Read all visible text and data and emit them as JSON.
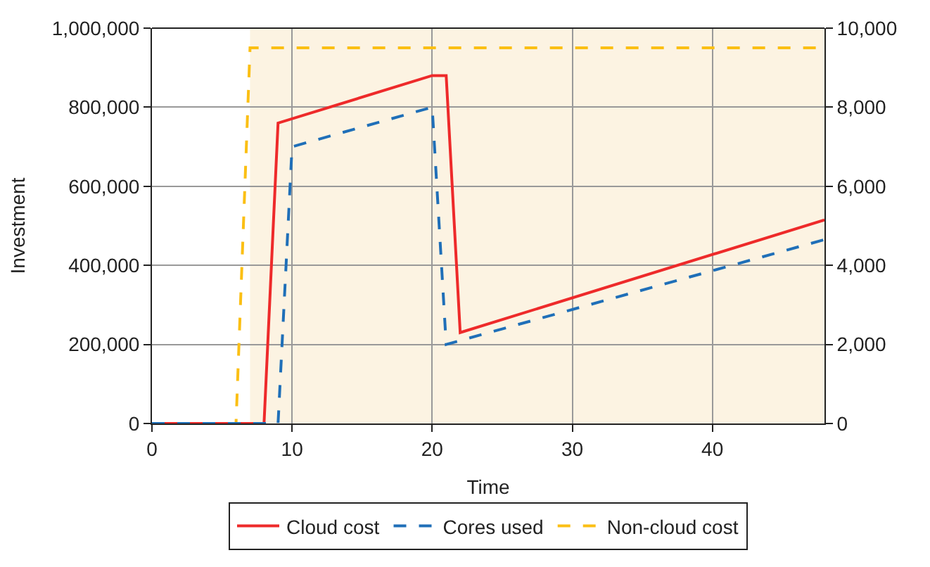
{
  "chart_data": {
    "type": "line",
    "xlabel": "Time",
    "ylabel": "Investment",
    "xlim": [
      0,
      48
    ],
    "xticks": [
      0,
      10,
      20,
      30,
      40
    ],
    "ylim": [
      0,
      1000000
    ],
    "yticks": [
      {
        "value": 0,
        "label": "0"
      },
      {
        "value": 200000,
        "label": "200,000"
      },
      {
        "value": 400000,
        "label": "400,000"
      },
      {
        "value": 600000,
        "label": "600,000"
      },
      {
        "value": 800000,
        "label": "800,000"
      },
      {
        "value": 1000000,
        "label": "1,000,000"
      }
    ],
    "y2lim": [
      0,
      10000
    ],
    "y2ticks": [
      {
        "value": 0,
        "label": "0"
      },
      {
        "value": 2000,
        "label": "2,000"
      },
      {
        "value": 4000,
        "label": "4,000"
      },
      {
        "value": 6000,
        "label": "6,000"
      },
      {
        "value": 8000,
        "label": "8,000"
      },
      {
        "value": 10000,
        "label": "10,000"
      }
    ],
    "grid": true,
    "legend": "bottom",
    "marker": "none",
    "bands": [
      {
        "axis": "x",
        "from": 7,
        "to": 48,
        "color": "#fcf3e2"
      }
    ],
    "series": [
      {
        "name": "Cloud cost",
        "color": "#ee2a2a",
        "line_style": "solid",
        "x": [
          0,
          8,
          9,
          20,
          21,
          22,
          48
        ],
        "values": [
          0,
          0,
          760000,
          880000,
          880000,
          230000,
          515000
        ]
      },
      {
        "name": "Cores used",
        "color": "#1f6fb8",
        "line_style": "dashed",
        "axis": "y2",
        "x": [
          0,
          9,
          10,
          20,
          21,
          48
        ],
        "values": [
          0,
          0,
          7000,
          8000,
          2000,
          4650
        ]
      },
      {
        "name": "Non-cloud cost",
        "color": "#fbbf14",
        "line_style": "dashed",
        "x": [
          0,
          6,
          7,
          48
        ],
        "values": [
          0,
          0,
          950000,
          950000
        ]
      }
    ]
  }
}
